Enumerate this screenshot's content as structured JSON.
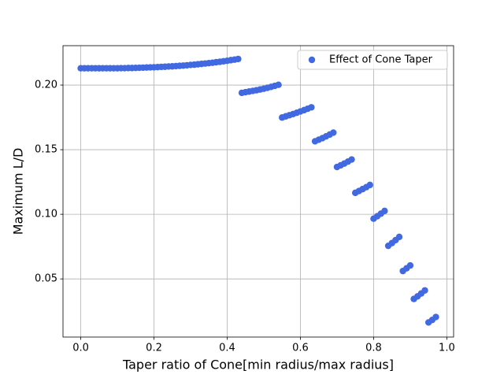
{
  "chart_data": {
    "type": "scatter",
    "xlabel": "Taper ratio of Cone[min radius/max radius]",
    "ylabel": "Maximum L/D",
    "series": [
      {
        "name": "Effect of Cone Taper",
        "color": "#4169e1",
        "x": [
          0,
          0.01,
          0.02,
          0.03,
          0.04,
          0.05,
          0.06,
          0.07,
          0.08,
          0.09,
          0.1,
          0.11,
          0.12,
          0.13,
          0.14,
          0.15,
          0.16,
          0.17,
          0.18,
          0.19,
          0.2,
          0.21,
          0.22,
          0.23,
          0.24,
          0.25,
          0.26,
          0.27,
          0.28,
          0.29,
          0.3,
          0.31,
          0.32,
          0.33,
          0.34,
          0.35,
          0.36,
          0.37,
          0.38,
          0.39,
          0.4,
          0.41,
          0.42,
          0.43,
          0.44,
          0.45,
          0.46,
          0.47,
          0.48,
          0.49,
          0.5,
          0.51,
          0.52,
          0.53,
          0.54,
          0.55,
          0.56,
          0.57,
          0.58,
          0.59,
          0.6,
          0.61,
          0.62,
          0.63,
          0.64,
          0.65,
          0.66,
          0.67,
          0.68,
          0.69,
          0.7,
          0.71,
          0.72,
          0.73,
          0.74,
          0.75,
          0.76,
          0.77,
          0.78,
          0.79,
          0.8,
          0.81,
          0.82,
          0.83,
          0.84,
          0.85,
          0.86,
          0.87,
          0.88,
          0.89,
          0.9,
          0.91,
          0.92,
          0.93,
          0.94,
          0.95,
          0.96,
          0.97
        ],
        "values": [
          0.213,
          0.213,
          0.213,
          0.213,
          0.213,
          0.213,
          0.213,
          0.213,
          0.213,
          0.213,
          0.213,
          0.2131,
          0.2131,
          0.2132,
          0.2132,
          0.2133,
          0.2134,
          0.2135,
          0.2136,
          0.2137,
          0.2138,
          0.2139,
          0.2141,
          0.2142,
          0.2144,
          0.2145,
          0.2147,
          0.2149,
          0.2151,
          0.2153,
          0.2156,
          0.2158,
          0.2161,
          0.2164,
          0.2167,
          0.217,
          0.2173,
          0.2177,
          0.218,
          0.2184,
          0.2188,
          0.2193,
          0.2197,
          0.2202,
          0.194,
          0.1945,
          0.195,
          0.1955,
          0.196,
          0.1966,
          0.1972,
          0.1979,
          0.1986,
          0.1994,
          0.2002,
          0.1749,
          0.1758,
          0.1767,
          0.1776,
          0.1786,
          0.1796,
          0.1806,
          0.1817,
          0.1828,
          0.1565,
          0.1577,
          0.1589,
          0.1603,
          0.1617,
          0.1632,
          0.1366,
          0.1379,
          0.1393,
          0.1408,
          0.1424,
          0.1166,
          0.118,
          0.1195,
          0.121,
          0.1227,
          0.0966,
          0.0985,
          0.1005,
          0.1026,
          0.0756,
          0.0777,
          0.08,
          0.0825,
          0.0561,
          0.0582,
          0.0604,
          0.0345,
          0.0365,
          0.0387,
          0.0411,
          0.0163,
          0.0182,
          0.0205
        ]
      }
    ],
    "xlim": [
      -0.0485,
      1.0185
    ],
    "xticks": [
      {
        "value": 0,
        "label": "0.0"
      },
      0.2,
      0.4,
      0.6,
      0.8,
      {
        "value": 1,
        "label": "1.0"
      }
    ],
    "ylim": [
      0.005,
      0.2305
    ],
    "yticks": [
      0.05,
      {
        "value": 0.1,
        "label": "0.10"
      },
      0.15,
      {
        "value": 0.2,
        "label": "0.20"
      }
    ],
    "grid": true,
    "legend": "upper right"
  }
}
